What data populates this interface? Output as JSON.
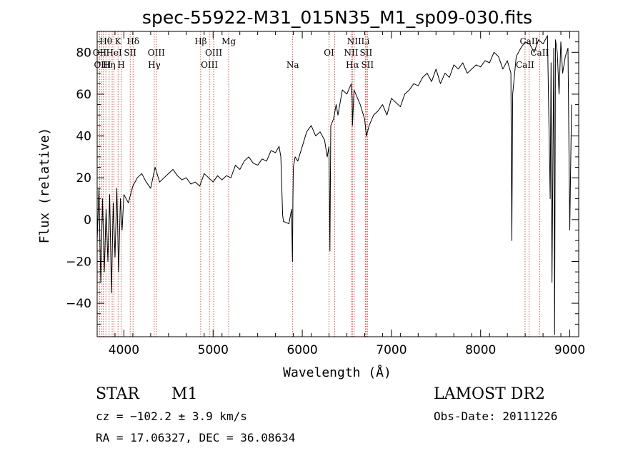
{
  "chart_data": {
    "type": "line",
    "title": "spec-55922-M31_015N35_M1_sp09-030.fits",
    "xlabel": "Wavelength (Å)",
    "ylabel": "Flux (relative)",
    "xlim": [
      3700,
      9100
    ],
    "ylim": [
      -56,
      90
    ],
    "xticks": [
      4000,
      5000,
      6000,
      7000,
      8000,
      9000
    ],
    "yticks": [
      -40,
      -20,
      0,
      20,
      40,
      60,
      80
    ],
    "grid": false,
    "series": [
      {
        "values_description": "flux",
        "color": "#000000",
        "x": [
          3700,
          3720,
          3740,
          3760,
          3780,
          3800,
          3820,
          3840,
          3860,
          3880,
          3900,
          3920,
          3940,
          3960,
          3980,
          4000,
          4050,
          4100,
          4150,
          4200,
          4250,
          4300,
          4350,
          4400,
          4450,
          4500,
          4550,
          4600,
          4650,
          4700,
          4750,
          4800,
          4850,
          4900,
          4950,
          5000,
          5050,
          5100,
          5150,
          5200,
          5250,
          5300,
          5350,
          5400,
          5450,
          5500,
          5550,
          5600,
          5650,
          5700,
          5740,
          5760,
          5780,
          5790,
          5800,
          5850,
          5880,
          5890,
          5895,
          5900,
          5920,
          5950,
          6000,
          6050,
          6100,
          6150,
          6200,
          6250,
          6280,
          6300,
          6310,
          6315,
          6320,
          6350,
          6380,
          6400,
          6450,
          6500,
          6550,
          6560,
          6563,
          6580,
          6600,
          6650,
          6700,
          6720,
          6750,
          6800,
          6850,
          6900,
          6950,
          7000,
          7050,
          7100,
          7150,
          7200,
          7250,
          7300,
          7350,
          7400,
          7450,
          7500,
          7550,
          7600,
          7650,
          7700,
          7750,
          7800,
          7850,
          7900,
          7950,
          8000,
          8050,
          8100,
          8150,
          8200,
          8250,
          8300,
          8340,
          8350,
          8360,
          8400,
          8450,
          8500,
          8550,
          8600,
          8650,
          8700,
          8750,
          8780,
          8790,
          8800,
          8820,
          8830,
          8840,
          8860,
          8880,
          8900,
          8920,
          8950,
          8980,
          9000,
          9020
        ],
        "values": [
          -10,
          15,
          -30,
          10,
          -25,
          5,
          -20,
          12,
          -35,
          8,
          -18,
          15,
          -25,
          10,
          -5,
          12,
          8,
          16,
          20,
          22,
          18,
          15,
          25,
          18,
          20,
          22,
          24,
          21,
          19,
          20,
          17,
          18,
          16,
          22,
          20,
          18,
          21,
          19,
          21,
          20,
          26,
          24,
          28,
          30,
          27,
          26,
          29,
          28,
          33,
          32,
          35,
          30,
          2,
          -1,
          -1,
          -2,
          5,
          -20,
          10,
          25,
          30,
          28,
          35,
          42,
          45,
          40,
          42,
          38,
          30,
          35,
          -15,
          15,
          45,
          48,
          55,
          50,
          62,
          60,
          65,
          58,
          45,
          62,
          60,
          55,
          48,
          40,
          45,
          50,
          52,
          55,
          50,
          58,
          56,
          54,
          60,
          62,
          65,
          64,
          68,
          70,
          66,
          72,
          65,
          70,
          68,
          74,
          72,
          75,
          70,
          72,
          74,
          73,
          76,
          75,
          80,
          78,
          72,
          76,
          70,
          -10,
          60,
          78,
          82,
          85,
          84,
          80,
          86,
          84,
          88,
          10,
          75,
          -30,
          82,
          -55,
          86,
          80,
          60,
          85,
          70,
          78,
          82,
          -5,
          55
        ]
      }
    ],
    "spectral_lines": [
      {
        "label": "Hθ",
        "x": 3798,
        "row": 1
      },
      {
        "label": "OII",
        "x": 3727,
        "row": 2
      },
      {
        "label": "K",
        "x": 3934,
        "row": 1
      },
      {
        "label": "Hδ",
        "x": 4102,
        "row": 1
      },
      {
        "label": "HeI",
        "x": 3889,
        "row": 2
      },
      {
        "label": "SII",
        "x": 4070,
        "row": 2
      },
      {
        "label": "OIII",
        "x": 4363,
        "row": 2
      },
      {
        "label": "OIII",
        "x": 3760,
        "row": 3
      },
      {
        "label": "Hη",
        "x": 3835,
        "row": 3
      },
      {
        "label": "H",
        "x": 3969,
        "row": 3
      },
      {
        "label": "Hγ",
        "x": 4340,
        "row": 3
      },
      {
        "label": "Hβ",
        "x": 4861,
        "row": 1
      },
      {
        "label": "Mg",
        "x": 5175,
        "row": 1
      },
      {
        "label": "OIII",
        "x": 5007,
        "row": 2
      },
      {
        "label": "OIII",
        "x": 4959,
        "row": 3
      },
      {
        "label": "Na",
        "x": 5893,
        "row": 3
      },
      {
        "label": "NII",
        "x": 6583,
        "row": 1
      },
      {
        "label": "Li",
        "x": 6708,
        "row": 1
      },
      {
        "label": "OI",
        "x": 6300,
        "row": 2
      },
      {
        "label": "NII",
        "x": 6548,
        "row": 2
      },
      {
        "label": "SII",
        "x": 6716,
        "row": 2
      },
      {
        "label": "Hα",
        "x": 6563,
        "row": 3
      },
      {
        "label": "SII",
        "x": 6731,
        "row": 3
      },
      {
        "label": "CaII",
        "x": 8542,
        "row": 1
      },
      {
        "label": "CaII",
        "x": 8662,
        "row": 2
      },
      {
        "label": "CaII",
        "x": 8498,
        "row": 3
      }
    ],
    "line_markers_x": [
      3727,
      3750,
      3770,
      3798,
      3835,
      3868,
      3889,
      3934,
      3969,
      4070,
      4102,
      4340,
      4363,
      4861,
      4959,
      5007,
      5175,
      5893,
      6300,
      6363,
      6548,
      6563,
      6583,
      6708,
      6716,
      6731,
      8498,
      8542,
      8662
    ]
  },
  "info": {
    "object_class": "STAR",
    "subclass": "M1",
    "survey": "LAMOST DR2",
    "cz": "cz = −102.2 ± 3.9 km/s",
    "obs_date": "Obs-Date: 20111226",
    "coords": "RA =  17.06327, DEC =  36.08634"
  }
}
